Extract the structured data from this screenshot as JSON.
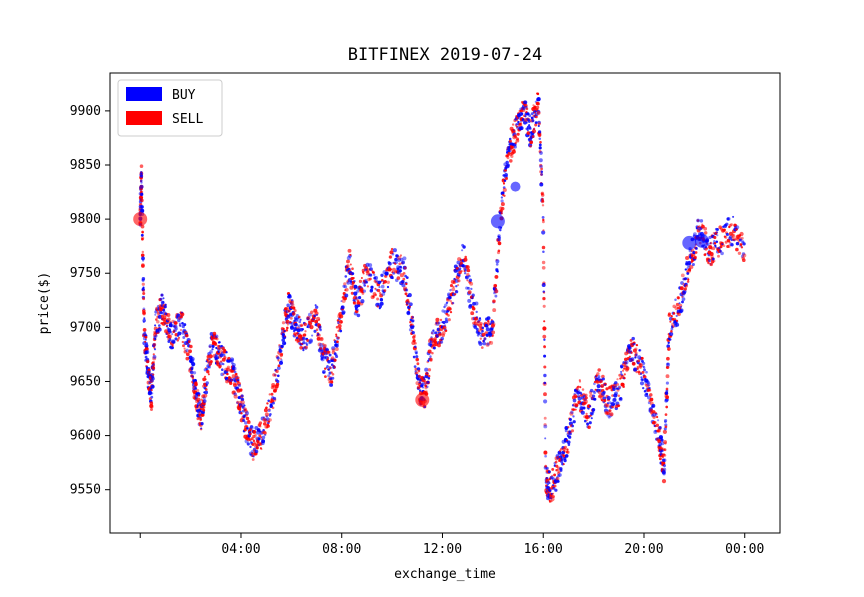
{
  "chart_data": {
    "type": "scatter",
    "title": "BITFINEX 2019-07-24",
    "xlabel": "exchange_time",
    "ylabel": "price($)",
    "x_ticks": [
      "04:00",
      "08:00",
      "12:00",
      "16:00",
      "20:00",
      "00:00"
    ],
    "x_tick_hours": [
      4,
      8,
      12,
      16,
      20,
      24
    ],
    "y_ticks": [
      9550,
      9600,
      9650,
      9700,
      9750,
      9800,
      9850,
      9900
    ],
    "xlim_hours": [
      -1.2,
      25.4
    ],
    "ylim": [
      9510,
      9935
    ],
    "legend": {
      "placement": "top-left",
      "entries": [
        "BUY",
        "SELL"
      ]
    },
    "colors": {
      "BUY": "#0000ff",
      "SELL": "#ff0000"
    },
    "price_path": [
      [
        0.0,
        9800
      ],
      [
        0.05,
        9845
      ],
      [
        0.15,
        9700
      ],
      [
        0.3,
        9660
      ],
      [
        0.45,
        9635
      ],
      [
        0.6,
        9700
      ],
      [
        0.9,
        9720
      ],
      [
        1.2,
        9690
      ],
      [
        1.6,
        9705
      ],
      [
        2.0,
        9670
      ],
      [
        2.2,
        9640
      ],
      [
        2.4,
        9615
      ],
      [
        2.6,
        9650
      ],
      [
        2.9,
        9690
      ],
      [
        3.2,
        9670
      ],
      [
        3.6,
        9660
      ],
      [
        3.9,
        9640
      ],
      [
        4.2,
        9610
      ],
      [
        4.5,
        9590
      ],
      [
        4.8,
        9600
      ],
      [
        5.2,
        9630
      ],
      [
        5.6,
        9680
      ],
      [
        5.9,
        9720
      ],
      [
        6.2,
        9700
      ],
      [
        6.5,
        9690
      ],
      [
        7.0,
        9710
      ],
      [
        7.3,
        9670
      ],
      [
        7.6,
        9660
      ],
      [
        7.9,
        9700
      ],
      [
        8.3,
        9760
      ],
      [
        8.6,
        9720
      ],
      [
        9.0,
        9750
      ],
      [
        9.5,
        9730
      ],
      [
        10.0,
        9760
      ],
      [
        10.5,
        9750
      ],
      [
        10.8,
        9700
      ],
      [
        11.1,
        9640
      ],
      [
        11.3,
        9640
      ],
      [
        11.6,
        9690
      ],
      [
        12.0,
        9700
      ],
      [
        12.4,
        9730
      ],
      [
        12.8,
        9770
      ],
      [
        13.2,
        9720
      ],
      [
        13.6,
        9690
      ],
      [
        14.0,
        9700
      ],
      [
        14.3,
        9800
      ],
      [
        14.6,
        9860
      ],
      [
        14.9,
        9880
      ],
      [
        15.2,
        9900
      ],
      [
        15.5,
        9880
      ],
      [
        15.8,
        9910
      ],
      [
        16.0,
        9800
      ],
      [
        16.1,
        9560
      ],
      [
        16.3,
        9550
      ],
      [
        16.6,
        9570
      ],
      [
        17.0,
        9600
      ],
      [
        17.4,
        9640
      ],
      [
        17.8,
        9620
      ],
      [
        18.2,
        9650
      ],
      [
        18.6,
        9630
      ],
      [
        19.0,
        9640
      ],
      [
        19.4,
        9680
      ],
      [
        19.8,
        9670
      ],
      [
        20.2,
        9640
      ],
      [
        20.6,
        9600
      ],
      [
        20.8,
        9570
      ],
      [
        21.0,
        9700
      ],
      [
        21.4,
        9720
      ],
      [
        21.8,
        9760
      ],
      [
        22.2,
        9790
      ],
      [
        22.6,
        9770
      ],
      [
        23.0,
        9780
      ],
      [
        23.5,
        9790
      ],
      [
        24.0,
        9770
      ]
    ],
    "scatter_density_per_segment": 40,
    "highlight_trades": [
      {
        "side": "SELL",
        "hour": 0.0,
        "price": 9800
      },
      {
        "side": "SELL",
        "hour": 11.2,
        "price": 9633
      },
      {
        "side": "BUY",
        "hour": 14.2,
        "price": 9798
      },
      {
        "side": "BUY",
        "hour": 14.9,
        "price": 9830
      },
      {
        "side": "BUY",
        "hour": 21.8,
        "price": 9778
      },
      {
        "side": "BUY",
        "hour": 22.3,
        "price": 9780
      }
    ]
  }
}
